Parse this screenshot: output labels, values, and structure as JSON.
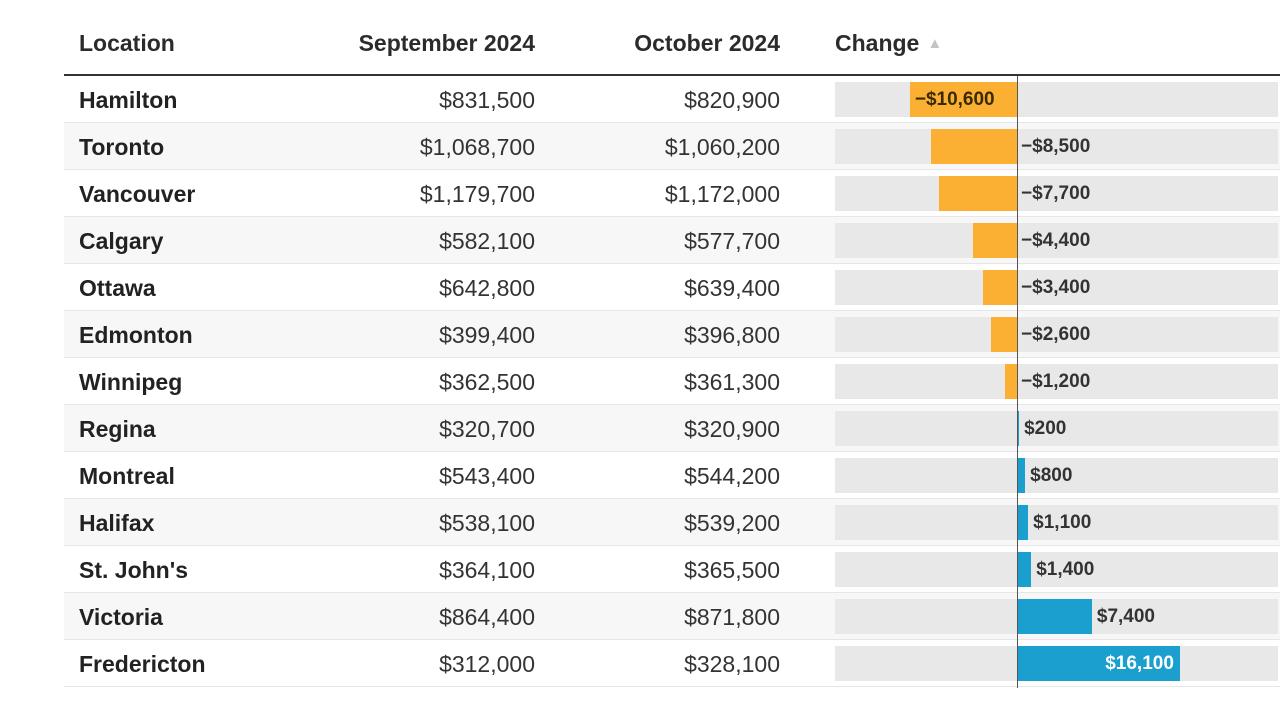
{
  "header": {
    "location": "Location",
    "september": "September 2024",
    "october": "October 2024",
    "change": "Change",
    "sort_icon": "▲"
  },
  "colors": {
    "negative": "#fbb034",
    "positive": "#1a9fcf"
  },
  "chart_data": {
    "type": "table",
    "columns": [
      "Location",
      "September 2024",
      "October 2024",
      "Change"
    ],
    "x_range": [
      -18000,
      25800
    ],
    "rows": [
      {
        "location": "Hamilton",
        "sep": "$831,500",
        "oct": "$820,900",
        "change_label": "−$10,600",
        "change": -10600
      },
      {
        "location": "Toronto",
        "sep": "$1,068,700",
        "oct": "$1,060,200",
        "change_label": "−$8,500",
        "change": -8500
      },
      {
        "location": "Vancouver",
        "sep": "$1,179,700",
        "oct": "$1,172,000",
        "change_label": "−$7,700",
        "change": -7700
      },
      {
        "location": "Calgary",
        "sep": "$582,100",
        "oct": "$577,700",
        "change_label": "−$4,400",
        "change": -4400
      },
      {
        "location": "Ottawa",
        "sep": "$642,800",
        "oct": "$639,400",
        "change_label": "−$3,400",
        "change": -3400
      },
      {
        "location": "Edmonton",
        "sep": "$399,400",
        "oct": "$396,800",
        "change_label": "−$2,600",
        "change": -2600
      },
      {
        "location": "Winnipeg",
        "sep": "$362,500",
        "oct": "$361,300",
        "change_label": "−$1,200",
        "change": -1200
      },
      {
        "location": "Regina",
        "sep": "$320,700",
        "oct": "$320,900",
        "change_label": "$200",
        "change": 200
      },
      {
        "location": "Montreal",
        "sep": "$543,400",
        "oct": "$544,200",
        "change_label": "$800",
        "change": 800
      },
      {
        "location": "Halifax",
        "sep": "$538,100",
        "oct": "$539,200",
        "change_label": "$1,100",
        "change": 1100
      },
      {
        "location": "St. John's",
        "sep": "$364,100",
        "oct": "$365,500",
        "change_label": "$1,400",
        "change": 1400
      },
      {
        "location": "Victoria",
        "sep": "$864,400",
        "oct": "$871,800",
        "change_label": "$7,400",
        "change": 7400
      },
      {
        "location": "Fredericton",
        "sep": "$312,000",
        "oct": "$328,100",
        "change_label": "$16,100",
        "change": 16100
      }
    ]
  }
}
